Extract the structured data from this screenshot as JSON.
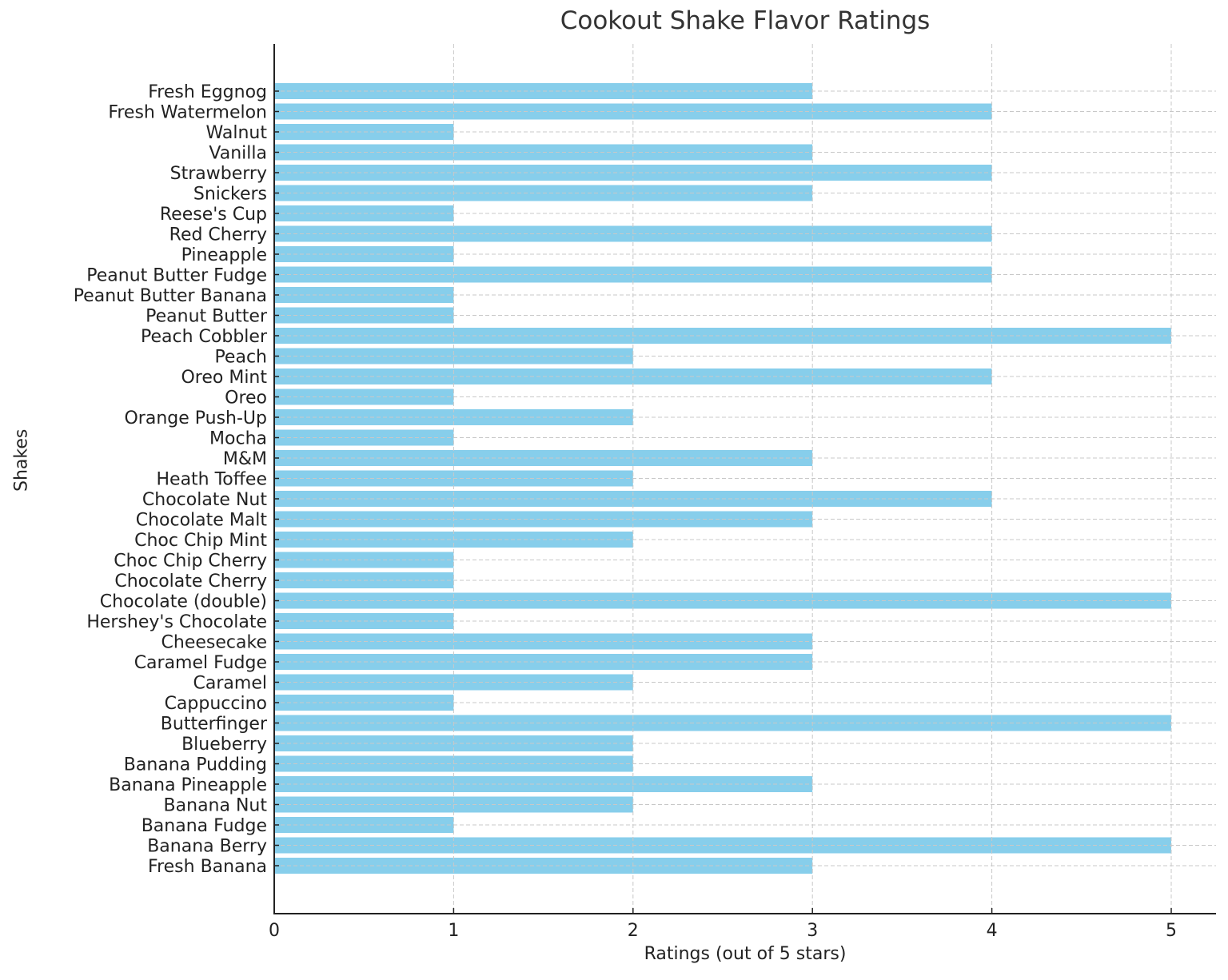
{
  "chart_data": {
    "type": "bar",
    "orientation": "horizontal",
    "title": "Cookout Shake Flavor Ratings",
    "xlabel": "Ratings (out of 5 stars)",
    "ylabel": "Shakes",
    "xlim": [
      0,
      5.25
    ],
    "xticks": [
      0,
      1,
      2,
      3,
      4,
      5
    ],
    "grid": true,
    "grid_style": "dashed",
    "legend": null,
    "bar_color": "#87CEEB",
    "categories": [
      "Fresh Banana",
      "Banana Berry",
      "Banana Fudge",
      "Banana Nut",
      "Banana Pineapple",
      "Banana Pudding",
      "Blueberry",
      "Butterfinger",
      "Cappuccino",
      "Caramel",
      "Caramel Fudge",
      "Cheesecake",
      "Hershey's Chocolate",
      "Chocolate (double)",
      "Chocolate Cherry",
      "Choc Chip Cherry",
      "Choc Chip Mint",
      "Chocolate Malt",
      "Chocolate Nut",
      "Heath Toffee",
      "M&M",
      "Mocha",
      "Orange Push-Up",
      "Oreo",
      "Oreo Mint",
      "Peach",
      "Peach Cobbler",
      "Peanut Butter",
      "Peanut Butter Banana",
      "Peanut Butter Fudge",
      "Pineapple",
      "Red Cherry",
      "Reese's Cup",
      "Snickers",
      "Strawberry",
      "Vanilla",
      "Walnut",
      "Fresh Watermelon",
      "Fresh Eggnog"
    ],
    "values": [
      3,
      5,
      1,
      2,
      3,
      2,
      2,
      5,
      1,
      2,
      3,
      3,
      1,
      5,
      1,
      1,
      2,
      3,
      4,
      2,
      3,
      1,
      2,
      1,
      4,
      2,
      5,
      1,
      1,
      4,
      1,
      4,
      1,
      3,
      4,
      3,
      1,
      4,
      3
    ]
  }
}
